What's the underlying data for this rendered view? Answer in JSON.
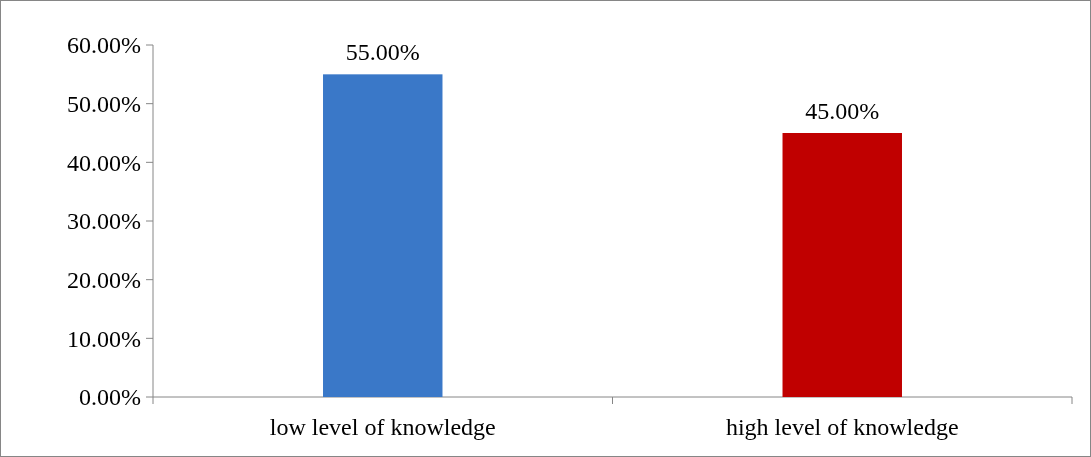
{
  "chart_data": {
    "type": "bar",
    "categories": [
      "low level of knowledge",
      "high level of knowledge"
    ],
    "values": [
      55,
      45
    ],
    "colors": [
      "#3a78c8",
      "#c00000"
    ],
    "value_labels": [
      "55.00%",
      "45.00%"
    ],
    "ylim": [
      0,
      60
    ],
    "yticks": [
      {
        "value": 0,
        "label": "0.00%"
      },
      {
        "value": 10,
        "label": "10.00%"
      },
      {
        "value": 20,
        "label": "20.00%"
      },
      {
        "value": 30,
        "label": "30.00%"
      },
      {
        "value": 40,
        "label": "40.00%"
      },
      {
        "value": 50,
        "label": "50.00%"
      },
      {
        "value": 60,
        "label": "60.00%"
      }
    ],
    "grid": false
  }
}
